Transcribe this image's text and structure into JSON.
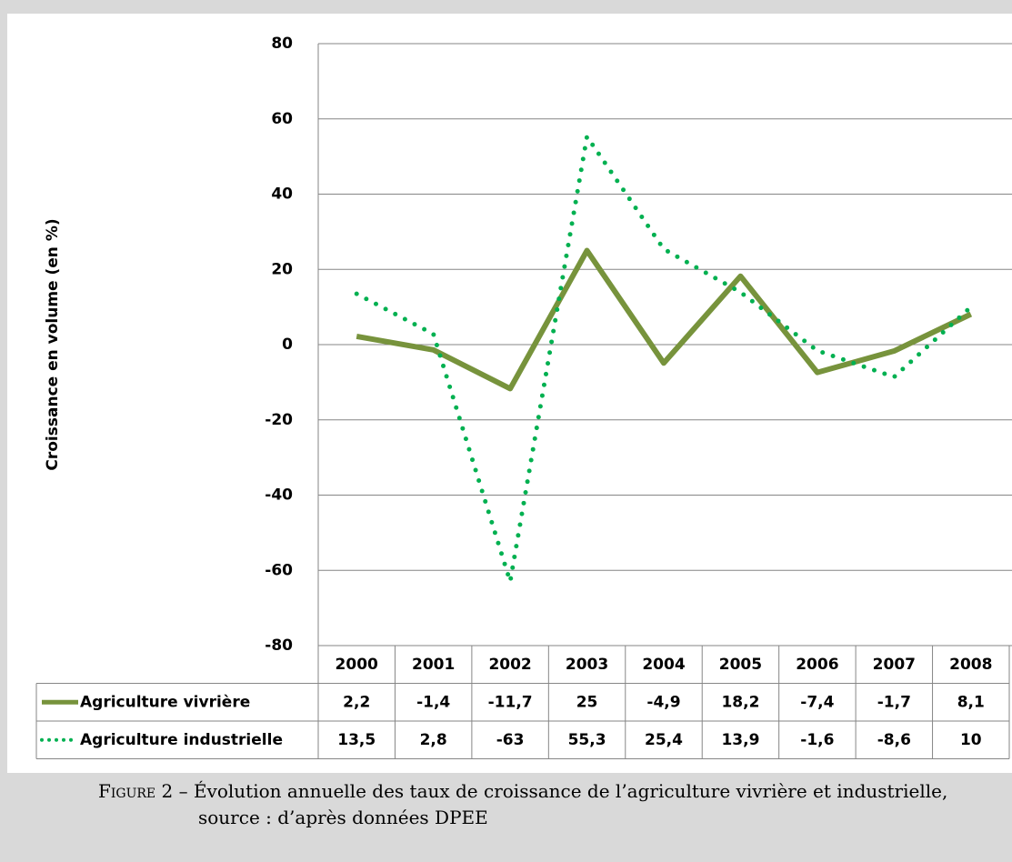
{
  "chart_data": {
    "type": "line",
    "categories": [
      "2000",
      "2001",
      "2002",
      "2003",
      "2004",
      "2005",
      "2006",
      "2007",
      "2008"
    ],
    "series": [
      {
        "name": "Agriculture vivrière",
        "color": "#77933c",
        "style": "solid",
        "values": [
          2.2,
          -1.4,
          -11.7,
          25,
          -4.9,
          18.2,
          -7.4,
          -1.7,
          8.1
        ],
        "value_labels": [
          "2,2",
          "-1,4",
          "-11,7",
          "25",
          "-4,9",
          "18,2",
          "-7,4",
          "-1,7",
          "8,1"
        ]
      },
      {
        "name": "Agriculture industrielle",
        "color": "#00b050",
        "style": "dotted",
        "values": [
          13.5,
          2.8,
          -63,
          55.3,
          25.4,
          13.9,
          -1.6,
          -8.6,
          10
        ],
        "value_labels": [
          "13,5",
          "2,8",
          "-63",
          "55,3",
          "25,4",
          "13,9",
          "-1,6",
          "-8,6",
          "10"
        ]
      }
    ],
    "ylabel": "Croissance en volume (en %)",
    "ylim": [
      -80,
      80
    ],
    "yticks": [
      -80,
      -60,
      -40,
      -20,
      0,
      20,
      40,
      60,
      80
    ],
    "grid": true
  },
  "caption": {
    "label": "Figure 2",
    "text": "– Évolution annuelle des taux de croissance de l’agriculture vivrière et industrielle, source : d’après données DPEE"
  }
}
